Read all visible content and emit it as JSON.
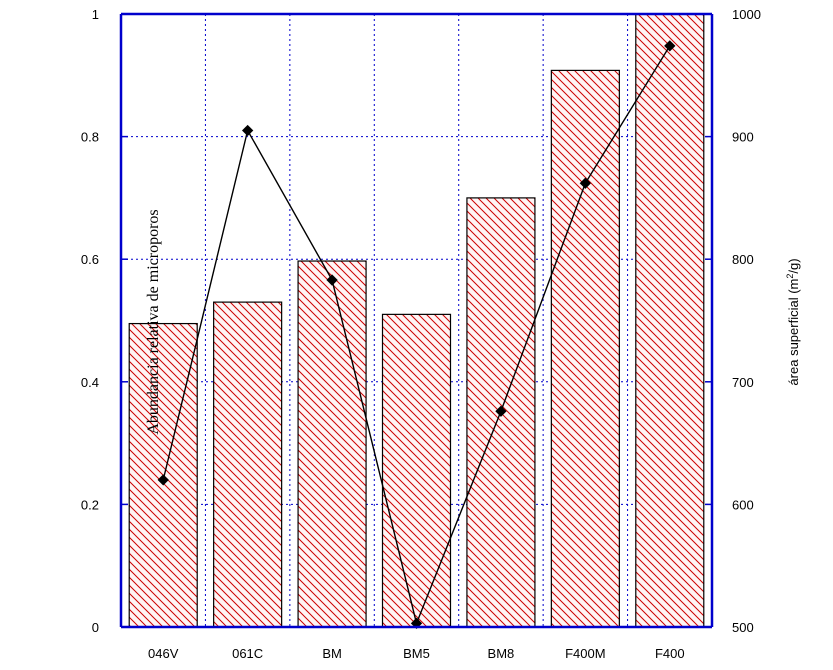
{
  "chart_data": {
    "type": "bar",
    "categories": [
      "046V",
      "061C",
      "BM",
      "BM5",
      "BM8",
      "F400M",
      "F400"
    ],
    "series": [
      {
        "type": "bar",
        "axis": "left",
        "values": [
          0.495,
          0.53,
          0.597,
          0.51,
          0.7,
          0.908,
          1.0
        ]
      },
      {
        "type": "line",
        "axis": "right",
        "values": [
          620,
          905,
          783,
          503,
          676,
          862,
          974
        ]
      }
    ],
    "ylabel": "Abundancia relativa de microporos",
    "ylabel_right": "área superficial (m",
    "ylabel_right_sup": "2",
    "ylabel_right_tail": "/g)",
    "ylim": [
      0,
      1
    ],
    "ylim_right": [
      500,
      1000
    ],
    "yticks": [
      "0",
      "0.2",
      "0.4",
      "0.6",
      "0.8",
      "1"
    ],
    "yticks_right": [
      "500",
      "600",
      "700",
      "800",
      "900",
      "1000"
    ],
    "grid": true,
    "colors": {
      "axis": "#0000cc",
      "grid": "#0000cc",
      "bar_hatch": "#cc0000",
      "bar_fill": "#fff4f4",
      "bar_edge": "#000000",
      "line": "#000000"
    }
  }
}
